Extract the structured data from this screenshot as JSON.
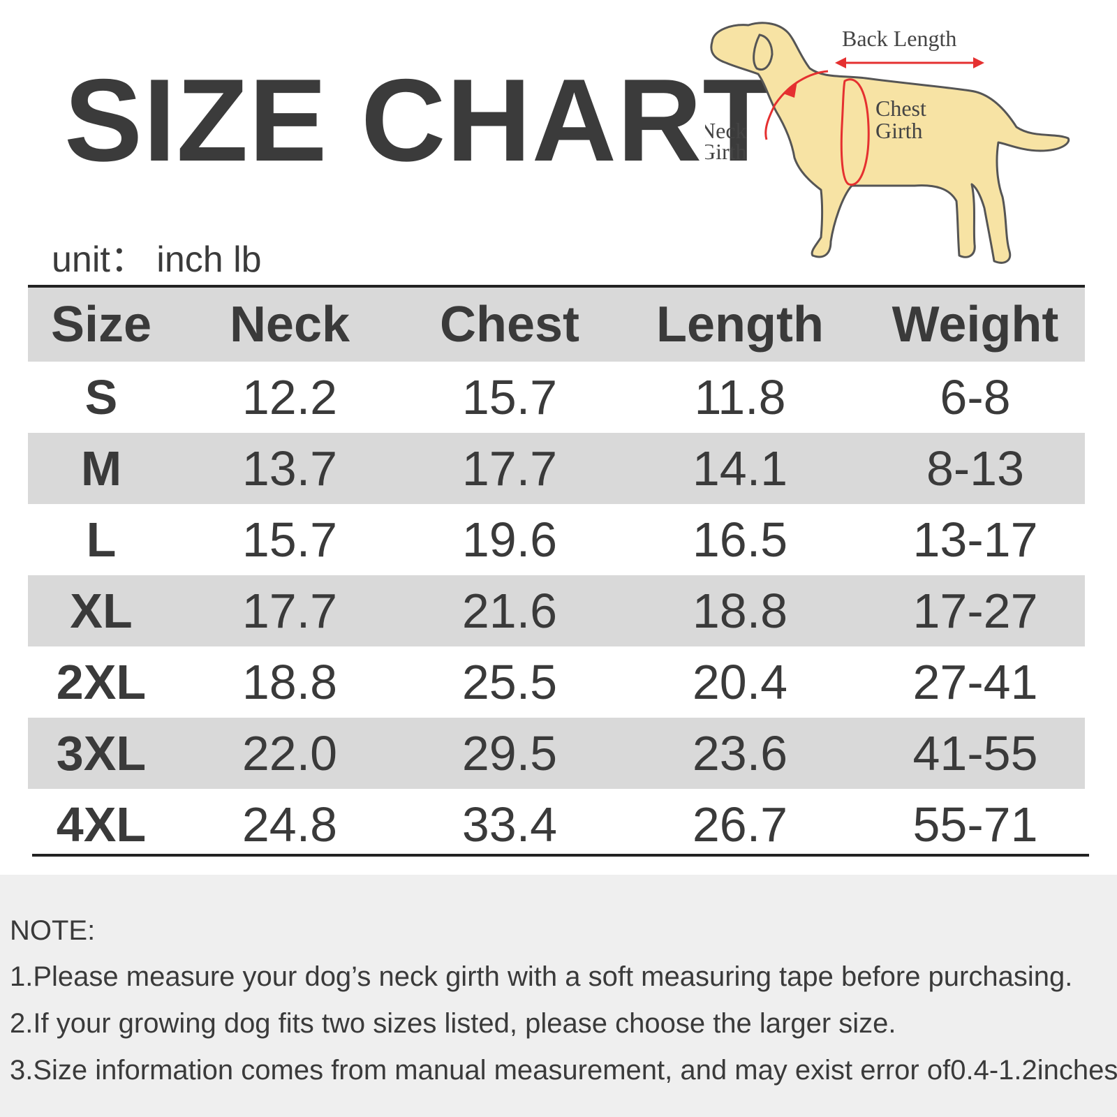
{
  "title": "SIZE CHART",
  "unit_label": "unit： inch  lb",
  "diagram": {
    "back_length": "Back Length",
    "chest_line1": "Chest",
    "chest_line2": "Girth",
    "neck_line1": "Neck",
    "neck_line2": "Girth",
    "colors": {
      "body": "#f7e3a4",
      "outline": "#555555",
      "measure": "#e53030"
    }
  },
  "table": {
    "headers": [
      "Size",
      "Neck",
      "Chest",
      "Length",
      "Weight"
    ],
    "rows": [
      [
        "S",
        "12.2",
        "15.7",
        "11.8",
        "6-8"
      ],
      [
        "M",
        "13.7",
        "17.7",
        "14.1",
        "8-13"
      ],
      [
        "L",
        "15.7",
        "19.6",
        "16.5",
        "13-17"
      ],
      [
        "XL",
        "17.7",
        "21.6",
        "18.8",
        "17-27"
      ],
      [
        "2XL",
        "18.8",
        "25.5",
        "20.4",
        "27-41"
      ],
      [
        "3XL",
        "22.0",
        "29.5",
        "23.6",
        "41-55"
      ],
      [
        "4XL",
        "24.8",
        "33.4",
        "26.7",
        "55-71"
      ]
    ]
  },
  "notes": {
    "heading": "NOTE:",
    "items": [
      "1.Please measure your dog’s neck girth with a soft measuring tape before purchasing.",
      "2.If your growing dog fits two sizes listed, please choose the larger size.",
      "3.Size information comes from manual measurement, and may exist error of0.4-1.2inches."
    ]
  }
}
